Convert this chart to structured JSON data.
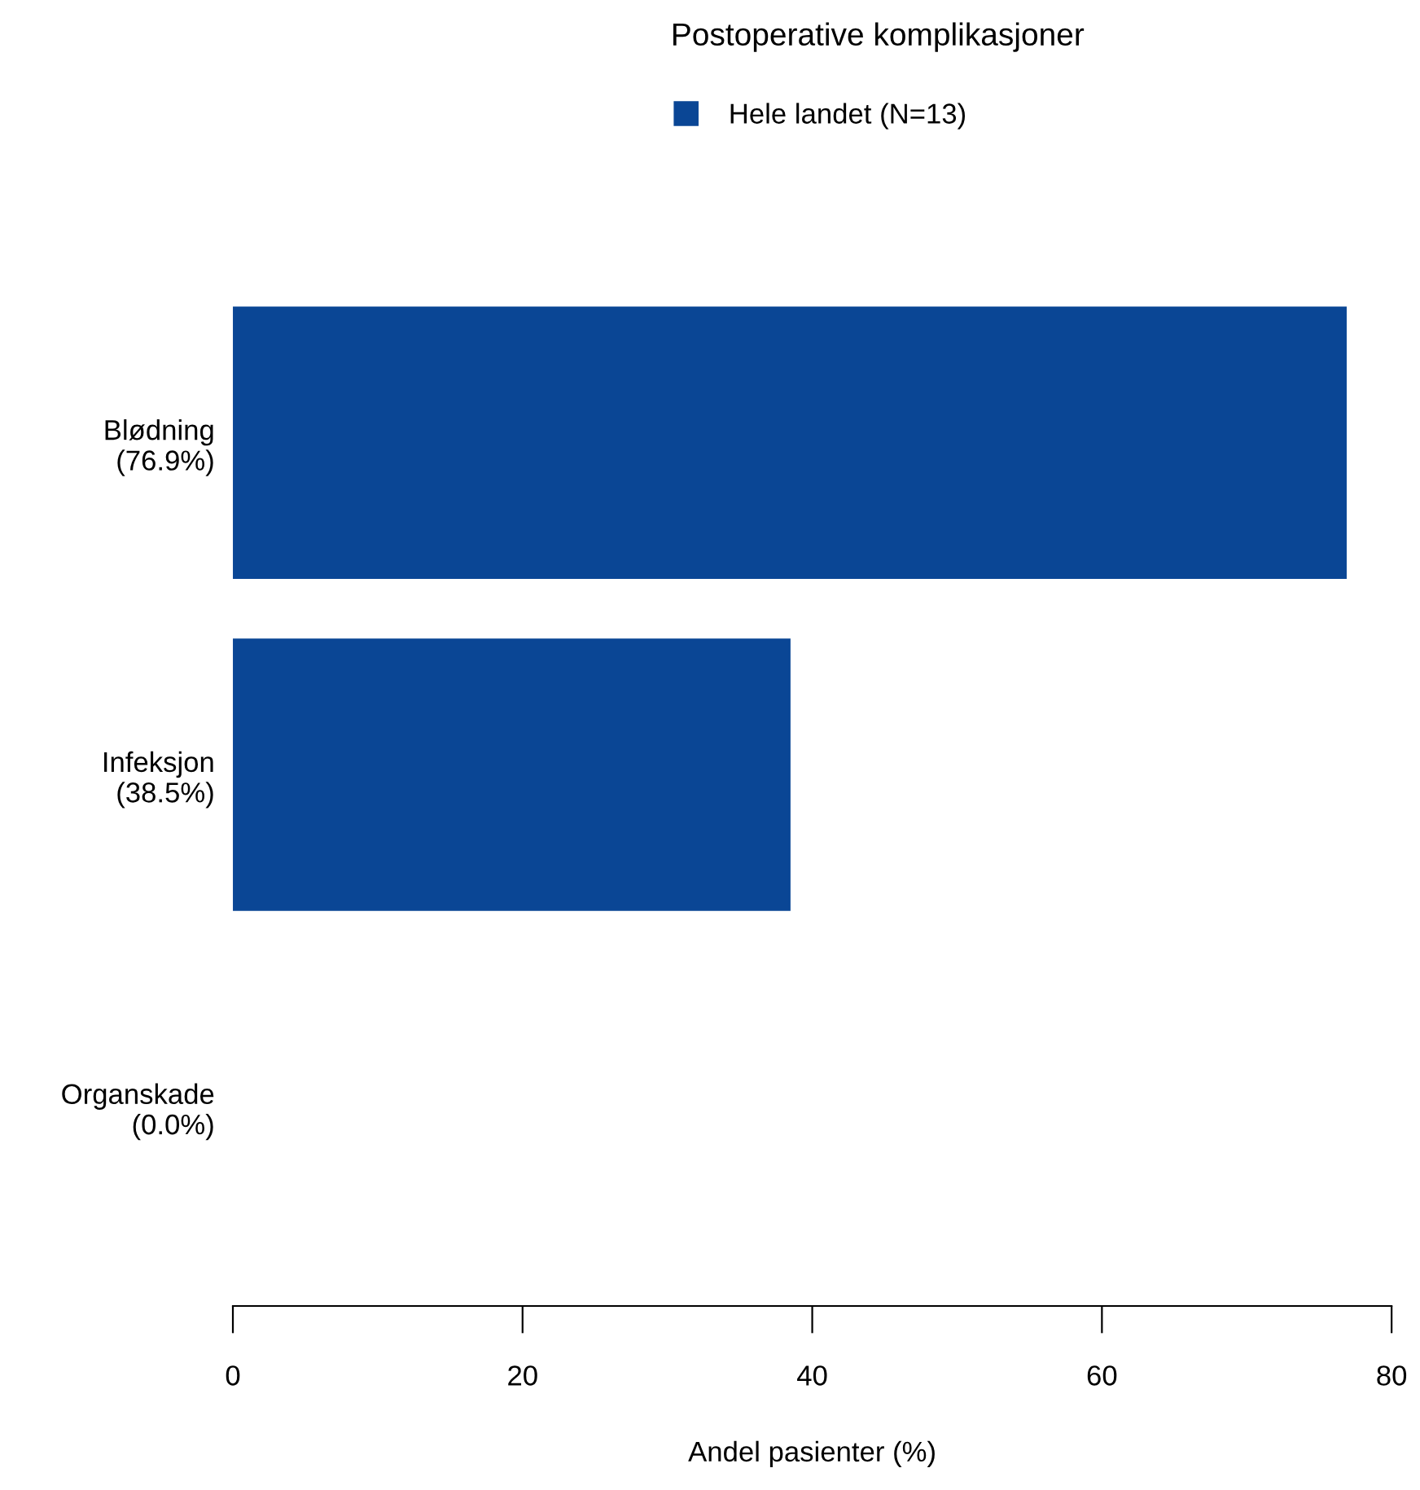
{
  "chart_data": {
    "type": "bar",
    "orientation": "horizontal",
    "title": "Postoperative komplikasjoner",
    "xlabel": "Andel pasienter (%)",
    "categories": [
      "Blødning\n(76.9%)",
      "Infeksjon\n(38.5%)",
      "Organskade\n(0.0%)"
    ],
    "series": [
      {
        "name": "Hele landet (N=13)",
        "color": "#0a4695",
        "values": [
          76.9,
          38.5,
          0.0
        ]
      }
    ],
    "xlim": [
      0,
      80
    ],
    "xticks": [
      0,
      20,
      40,
      60,
      80
    ],
    "grid": false,
    "legend": "top"
  }
}
